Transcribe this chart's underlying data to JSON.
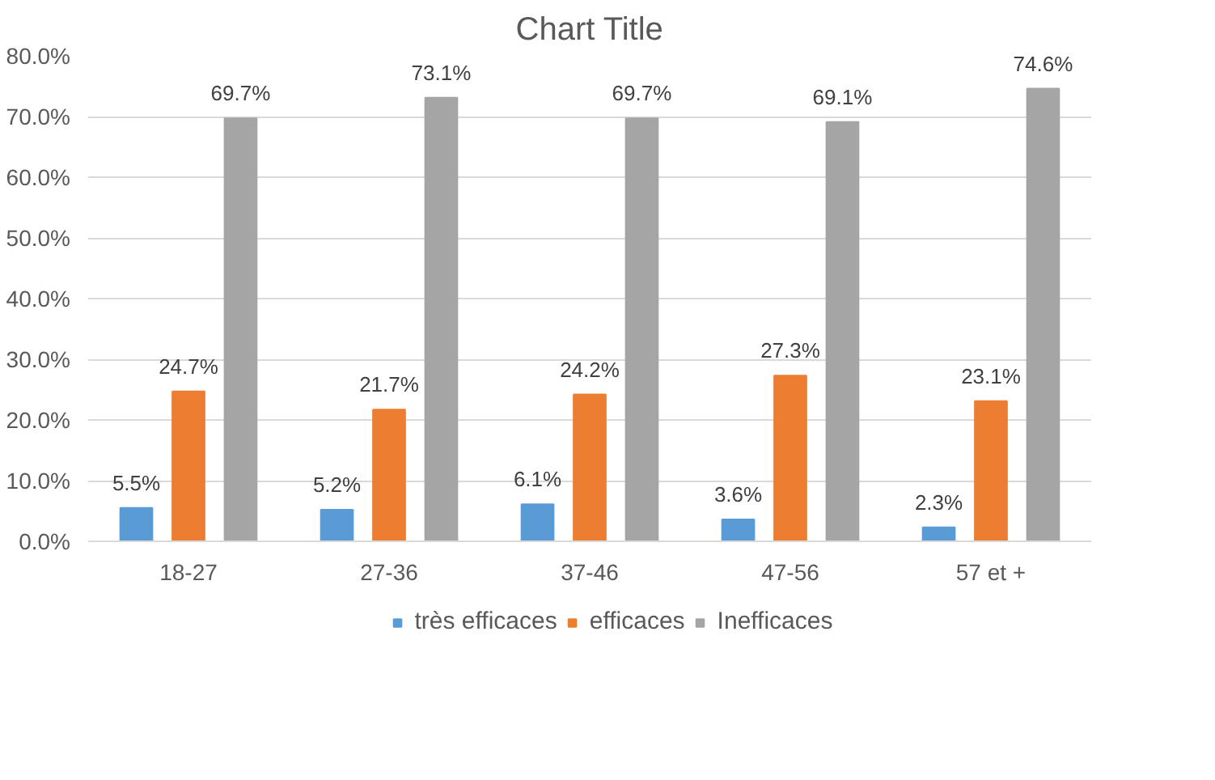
{
  "chart_data": {
    "type": "bar",
    "title": "Chart Title",
    "categories": [
      "18-27",
      "27-36",
      "37-46",
      "47-56",
      "57 et +"
    ],
    "series": [
      {
        "name": "très efficaces",
        "color": "#5b9bd5",
        "values": [
          5.5,
          5.2,
          6.1,
          3.6,
          2.3
        ],
        "value_labels": [
          "5.5%",
          "5.2%",
          "6.1%",
          "3.6%",
          "2.3%"
        ]
      },
      {
        "name": "efficaces",
        "color": "#ed7d31",
        "values": [
          24.7,
          21.7,
          24.2,
          27.3,
          23.1
        ],
        "value_labels": [
          "24.7%",
          "21.7%",
          "24.2%",
          "27.3%",
          "23.1%"
        ]
      },
      {
        "name": "Inefficaces",
        "color": "#a5a5a5",
        "values": [
          69.7,
          73.1,
          69.7,
          69.1,
          74.6
        ],
        "value_labels": [
          "69.7%",
          "73.1%",
          "69.7%",
          "69.1%",
          "74.6%"
        ]
      }
    ],
    "ylim": [
      0,
      80
    ],
    "yticks": [
      {
        "value": 0,
        "label": "0.0%"
      },
      {
        "value": 10,
        "label": "10.0%"
      },
      {
        "value": 20,
        "label": "20.0%"
      },
      {
        "value": 30,
        "label": "30.0%"
      },
      {
        "value": 40,
        "label": "40.0%"
      },
      {
        "value": 50,
        "label": "50.0%"
      },
      {
        "value": 60,
        "label": "60.0%"
      },
      {
        "value": 70,
        "label": "70.0%"
      },
      {
        "value": 80,
        "label": "80.0%"
      }
    ],
    "grid": "y",
    "legend": "bottom"
  }
}
